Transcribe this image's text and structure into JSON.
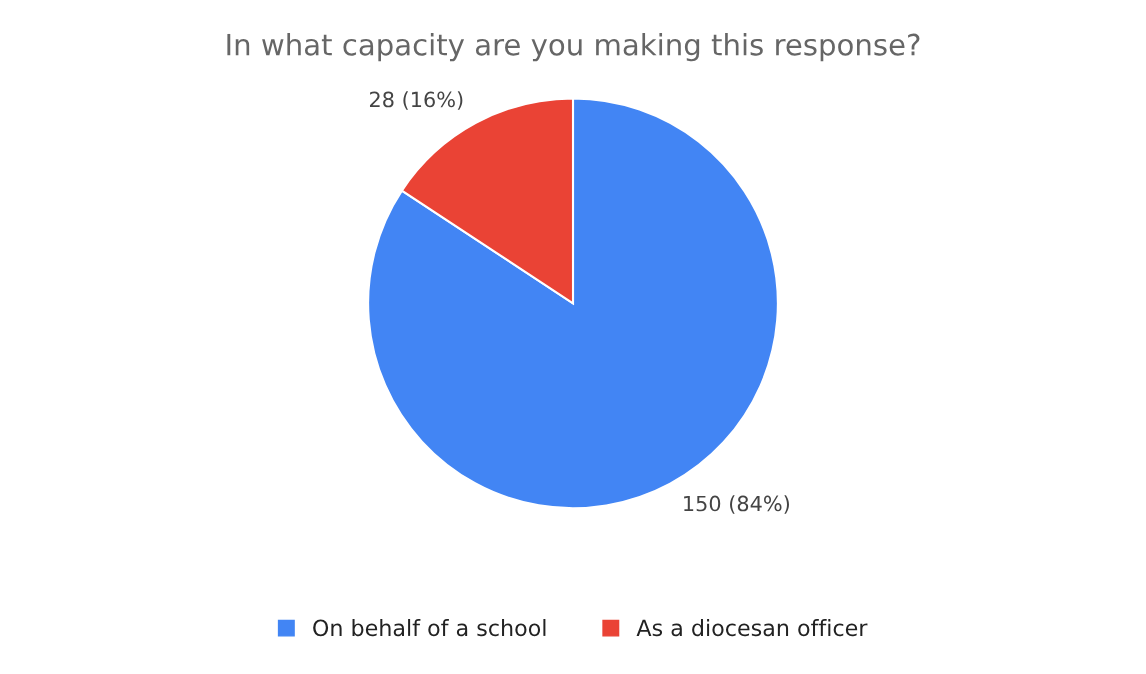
{
  "chart_data": {
    "type": "pie",
    "title": "In what capacity are you making this response?",
    "categories": [
      "On behalf of a school",
      "As a diocesan officer"
    ],
    "values": [
      150,
      28
    ],
    "colors": [
      "#4285f4",
      "#ea4335"
    ],
    "value_labels": [
      "150 (84%)",
      "28 (16%)"
    ],
    "legend": "bottom"
  }
}
